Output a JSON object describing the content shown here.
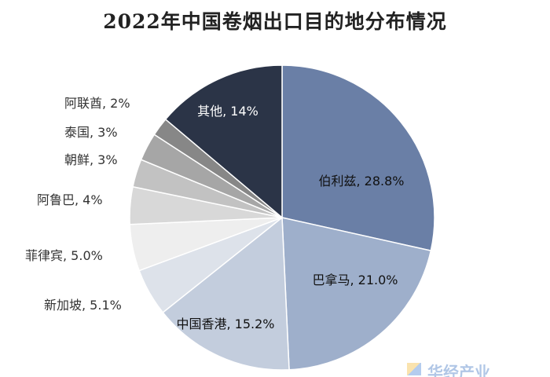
{
  "chart_data": {
    "type": "pie",
    "title": "2022年中国卷烟出口目的地分布情况",
    "start_angle_deg": 0,
    "direction": "clockwise",
    "slices": [
      {
        "key": "belize",
        "label": "伯利兹, 28.8%",
        "category": "伯利兹",
        "value": 28.8,
        "color": "#6a7fa6",
        "label_color": "#111111"
      },
      {
        "key": "canada",
        "label": "巴拿马, 21.0%",
        "category": "巴拿马",
        "value": 21.0,
        "color": "#9eafcb",
        "label_color": "#111111"
      },
      {
        "key": "hongkong",
        "label": "中国香港, 15.2%",
        "category": "中国香港",
        "value": 15.2,
        "color": "#c3cddd",
        "label_color": "#111111"
      },
      {
        "key": "singapore",
        "label": "新加坡, 5.1%",
        "category": "新加坡",
        "value": 5.1,
        "color": "#dde2ea",
        "label_color": "#333333"
      },
      {
        "key": "philippines",
        "label": "菲律宾, 5.0%",
        "category": "菲律宾",
        "value": 5.0,
        "color": "#eeeeee",
        "label_color": "#333333"
      },
      {
        "key": "aruba",
        "label": "阿鲁巴, 4%",
        "category": "阿鲁巴",
        "value": 4,
        "color": "#d8d8d8",
        "label_color": "#333333"
      },
      {
        "key": "nkorea",
        "label": "朝鲜, 3%",
        "category": "朝鲜",
        "value": 3,
        "color": "#c2c2c2",
        "label_color": "#333333"
      },
      {
        "key": "thailand",
        "label": "泰国, 3%",
        "category": "泰国",
        "value": 3,
        "color": "#a6a6a6",
        "label_color": "#333333"
      },
      {
        "key": "uae",
        "label": "阿联酋, 2%",
        "category": "阿联酋",
        "value": 2,
        "color": "#878787",
        "label_color": "#333333"
      },
      {
        "key": "others",
        "label": "其他, 14%",
        "category": "其他",
        "value": 14,
        "color": "#2b3447",
        "label_color": "#ffffff"
      }
    ]
  },
  "watermark": {
    "text": "华经产业"
  }
}
